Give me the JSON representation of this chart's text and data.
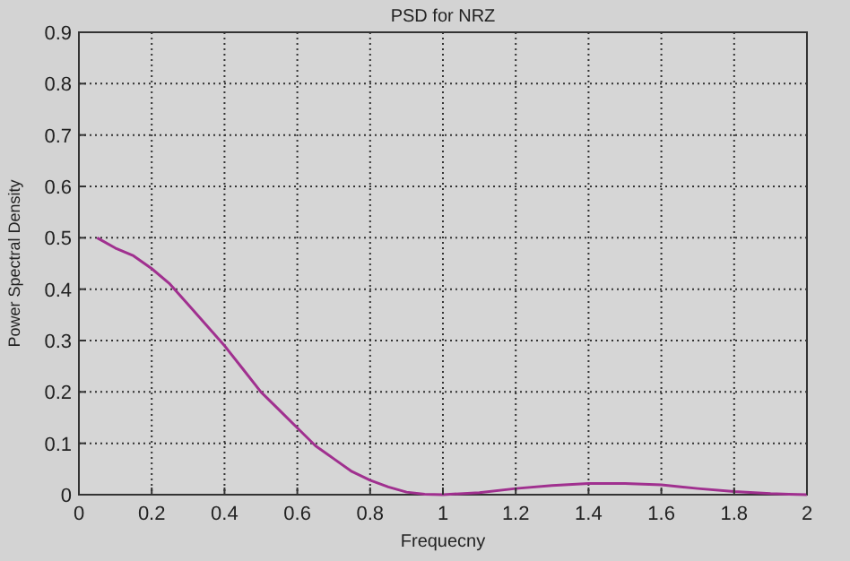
{
  "chart_data": {
    "type": "line",
    "title": "PSD for NRZ",
    "xlabel": "Frequecny",
    "ylabel": "Power Spectral Density",
    "xlim": [
      0,
      2
    ],
    "xticks": [
      0,
      0.2,
      0.4,
      0.6,
      0.8,
      1,
      1.2,
      1.4,
      1.6,
      1.8,
      2
    ],
    "ylim": [
      0,
      0.9
    ],
    "yticks": [
      0,
      0.1,
      0.2,
      0.3,
      0.4,
      0.5,
      0.6,
      0.7,
      0.8,
      0.9
    ],
    "grid": true,
    "marker": "none",
    "line_style": "solid",
    "series": [
      {
        "color": "#a0308f",
        "x": [
          0.05,
          0.1,
          0.15,
          0.2,
          0.25,
          0.3,
          0.35,
          0.4,
          0.45,
          0.5,
          0.55,
          0.6,
          0.65,
          0.7,
          0.75,
          0.8,
          0.85,
          0.9,
          0.95,
          1,
          1.1,
          1.2,
          1.3,
          1.4,
          1.5,
          1.6,
          1.7,
          1.8,
          1.9,
          1.95,
          2
        ],
        "values": [
          0.5,
          0.48,
          0.465,
          0.44,
          0.41,
          0.37,
          0.33,
          0.29,
          0.245,
          0.2,
          0.165,
          0.13,
          0.095,
          0.07,
          0.045,
          0.028,
          0.015,
          0.005,
          0.001,
          0,
          0.004,
          0.012,
          0.018,
          0.022,
          0.022,
          0.019,
          0.012,
          0.006,
          0.002,
          0.001,
          0
        ]
      }
    ]
  }
}
